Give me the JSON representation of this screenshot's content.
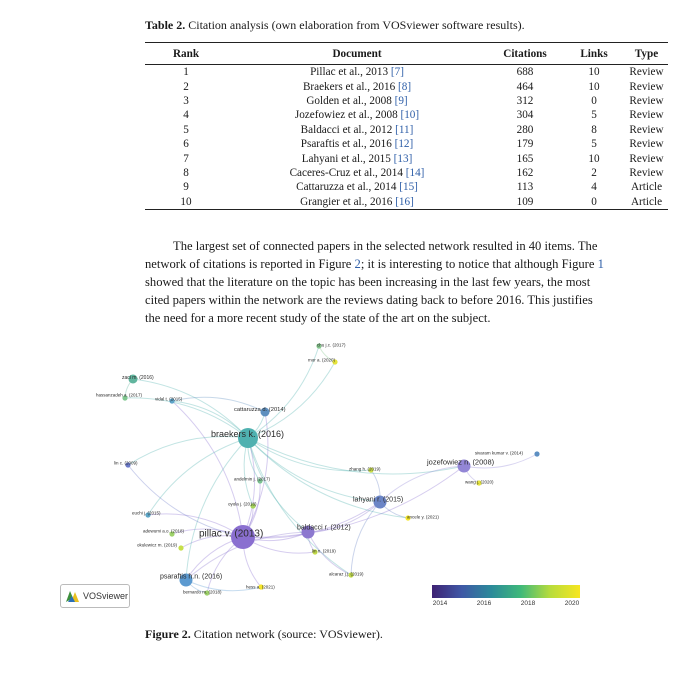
{
  "table": {
    "caption_label": "Table 2.",
    "caption_text": "Citation analysis (own elaboration from VOSviewer software results).",
    "headers": [
      "Rank",
      "Document",
      "Citations",
      "Links",
      "Type"
    ],
    "rows": [
      {
        "rank": "1",
        "doc": "Pillac et al., 2013",
        "ref": "[7]",
        "citations": "688",
        "links": "10",
        "type": "Review"
      },
      {
        "rank": "2",
        "doc": "Braekers et al., 2016",
        "ref": "[8]",
        "citations": "464",
        "links": "10",
        "type": "Review"
      },
      {
        "rank": "3",
        "doc": "Golden et al., 2008",
        "ref": "[9]",
        "citations": "312",
        "links": "0",
        "type": "Review"
      },
      {
        "rank": "4",
        "doc": "Jozefowiez et al., 2008",
        "ref": "[10]",
        "citations": "304",
        "links": "5",
        "type": "Review"
      },
      {
        "rank": "5",
        "doc": "Baldacci et al., 2012",
        "ref": "[11]",
        "citations": "280",
        "links": "8",
        "type": "Review"
      },
      {
        "rank": "6",
        "doc": "Psaraftis et al., 2016",
        "ref": "[12]",
        "citations": "179",
        "links": "5",
        "type": "Review"
      },
      {
        "rank": "7",
        "doc": "Lahyani et al., 2015",
        "ref": "[13]",
        "citations": "165",
        "links": "10",
        "type": "Review"
      },
      {
        "rank": "8",
        "doc": "Caceres-Cruz et al., 2014",
        "ref": "[14]",
        "citations": "162",
        "links": "2",
        "type": "Review"
      },
      {
        "rank": "9",
        "doc": "Cattaruzza et al., 2014",
        "ref": "[15]",
        "citations": "113",
        "links": "4",
        "type": "Article"
      },
      {
        "rank": "10",
        "doc": "Grangier et al., 2016",
        "ref": "[16]",
        "citations": "109",
        "links": "0",
        "type": "Article"
      }
    ]
  },
  "paragraph": {
    "l1": "The largest set of connected papers in the selected network resulted in 40 items. The",
    "l2_a": "network of citations is reported in Figure ",
    "l2_fig2": "2",
    "l2_b": "; it is interesting to notice that although Figure ",
    "l2_fig1": "1",
    "l3": "showed that the literature on the topic has been increasing in the last few years, the most",
    "l4": "cited papers within the network are the reviews dating back to before 2016. This justifies",
    "l5": "the need for a more recent study of the state of the art on the subject."
  },
  "network": {
    "nodes": [
      {
        "label": "pillac v. (2013)",
        "year": 2013,
        "size": "xl",
        "color": "#8a6fd0"
      },
      {
        "label": "braekers k. (2016)",
        "year": 2016,
        "size": "lg",
        "color": "#4fb1b0"
      },
      {
        "label": "baldacci r. (2012)",
        "year": 2012,
        "size": "md",
        "color": "#8c78cf"
      },
      {
        "label": "jozefowiez n. (2008)",
        "year": 2008,
        "size": "md",
        "color": "#9386d6"
      },
      {
        "label": "lahyani r. (2015)",
        "year": 2015,
        "size": "md",
        "color": "#6b85c6"
      },
      {
        "label": "psaraftis h.n. (2016)",
        "year": 2016,
        "size": "md",
        "color": "#5c9ad0"
      },
      {
        "label": "cattaruzza d. (2014)",
        "year": 2014,
        "size": "sm",
        "color": "#5e8fbf"
      },
      {
        "label": "zaci m. (2016)",
        "label_note": "partially legible",
        "year": 2016,
        "size": "sm",
        "color": "#61b59e"
      },
      {
        "label": "hassanzadeh a. (2017)",
        "year": 2017,
        "size": "xs",
        "color": "#7fc78f"
      },
      {
        "label": "vidal t. (2015)",
        "year": 2015,
        "size": "xs",
        "color": "#5ea4c9"
      },
      {
        "label": "lin c. (2009)",
        "year": 2009,
        "size": "xs",
        "color": "#6a79c9"
      },
      {
        "label": "euchi j. (2015)",
        "year": 2015,
        "size": "xs",
        "color": "#5da6c7"
      },
      {
        "label": "adewumi a.o. (2018)",
        "year": 2018,
        "size": "xs",
        "color": "#9fd36a"
      },
      {
        "label": "okulewicz m. (2019)",
        "year": 2019,
        "size": "xs",
        "color": "#c6df4a"
      },
      {
        "label": "andelmin j. (2017)",
        "year": 2017,
        "size": "xs",
        "color": "#7cc293"
      },
      {
        "label": "oyola j. (2018)",
        "year": 2018,
        "size": "xs",
        "color": "#a6d55d"
      },
      {
        "label": "chu j.c. (2017)",
        "year": 2017,
        "size": "xs",
        "color": "#84c68c"
      },
      {
        "label": "mor a. (2020)",
        "year": 2020,
        "size": "xs",
        "color": "#e4e33a"
      },
      {
        "label": "zhang h. (2019)",
        "year": 2019,
        "size": "xs",
        "color": "#c8dd48"
      },
      {
        "label": "sivaram kumar v. (2014)",
        "year": 2014,
        "size": "xs",
        "color": "#5d8fc2"
      },
      {
        "label": "wang j. (2020)",
        "year": 2020,
        "size": "xs",
        "color": "#e3e23b"
      },
      {
        "label": "ancele y. (2021)",
        "year": 2021,
        "size": "xs",
        "color": "#f4e62a"
      },
      {
        "label": "lin n. (2019)",
        "year": 2019,
        "size": "xs",
        "color": "#c4dc4a"
      },
      {
        "label": "alcaraz j.j. (2019)",
        "year": 2019,
        "size": "xs",
        "color": "#c2dc4c"
      },
      {
        "label": "hess a. (2021)",
        "year": 2021,
        "size": "xs",
        "color": "#f5e62a"
      },
      {
        "label": "bernardo m. (2018)",
        "year": 2018,
        "size": "xs",
        "color": "#9ed26a"
      }
    ]
  },
  "logo": {
    "text": "VOSviewer"
  },
  "scale": {
    "ticks": [
      "2014",
      "2016",
      "2018",
      "2020"
    ]
  },
  "figure": {
    "caption_label": "Figure 2.",
    "caption_text": "Citation network (source: VOSviewer)."
  }
}
